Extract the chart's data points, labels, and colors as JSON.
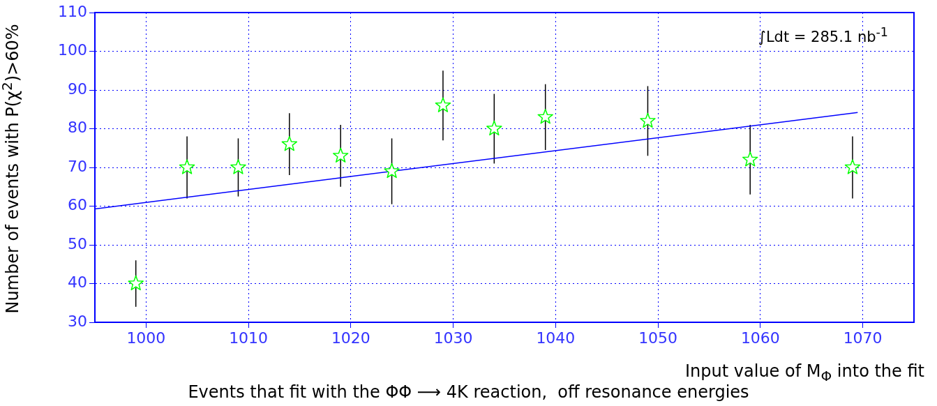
{
  "chart_data": {
    "type": "scatter",
    "title": "Events that fit with the ΦΦ ⟶ 4K reaction,  off resonance energies",
    "xlabel": "Input value of M$_{Φ}$ into the fit",
    "ylabel": "Number of events with P(χ$^{2}$)>60%",
    "annotations": [
      "∫Ldt = 285.1 nb$^{-1}$"
    ],
    "xlim": [
      995,
      1075
    ],
    "xticks": [
      1000,
      1010,
      1020,
      1030,
      1040,
      1050,
      1060,
      1070
    ],
    "ylim": [
      30,
      110
    ],
    "yticks": [
      30,
      40,
      50,
      60,
      70,
      80,
      90,
      100,
      110
    ],
    "grid": true,
    "legend": false,
    "marker": "star",
    "series": [
      {
        "color": "#00ff00",
        "x": [
          999,
          1004,
          1009,
          1014,
          1019,
          1024,
          1029,
          1034,
          1039,
          1049,
          1059,
          1069
        ],
        "values": [
          40,
          70,
          70,
          76,
          73,
          69,
          86,
          80,
          83,
          82,
          72,
          70
        ],
        "errors": [
          6,
          8,
          7.5,
          8,
          8,
          8.5,
          9,
          9,
          8.5,
          9,
          9,
          8
        ]
      },
      {
        "type": "line",
        "color": "#0000ff",
        "marker": "none",
        "x": [
          995,
          1069.5
        ],
        "values": [
          59.3,
          84.2
        ]
      }
    ]
  }
}
